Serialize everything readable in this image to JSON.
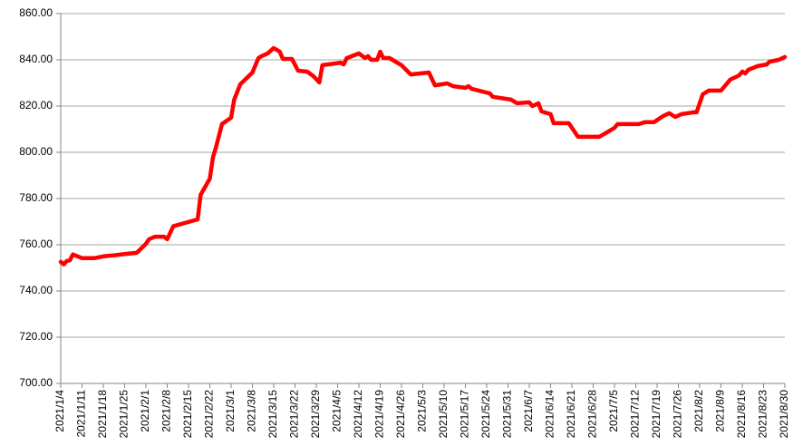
{
  "chart_data": {
    "type": "line",
    "color": "#ff0000",
    "x": [
      "2021/1/4",
      "2021/1/5",
      "2021/1/6",
      "2021/1/7",
      "2021/1/8",
      "2021/1/11",
      "2021/1/15",
      "2021/1/18",
      "2021/1/22",
      "2021/1/25",
      "2021/1/29",
      "2021/2/1",
      "2021/2/2",
      "2021/2/4",
      "2021/2/7",
      "2021/2/8",
      "2021/2/10",
      "2021/2/18",
      "2021/2/19",
      "2021/2/22",
      "2021/2/23",
      "2021/2/24",
      "2021/2/26",
      "2021/3/1",
      "2021/3/2",
      "2021/3/4",
      "2021/3/8",
      "2021/3/10",
      "2021/3/11",
      "2021/3/13",
      "2021/3/15",
      "2021/3/17",
      "2021/3/18",
      "2021/3/21",
      "2021/3/23",
      "2021/3/26",
      "2021/3/28",
      "2021/3/30",
      "2021/3/31",
      "2021/4/4",
      "2021/4/6",
      "2021/4/7",
      "2021/4/8",
      "2021/4/9",
      "2021/4/12",
      "2021/4/14",
      "2021/4/15",
      "2021/4/16",
      "2021/4/18",
      "2021/4/19",
      "2021/4/20",
      "2021/4/22",
      "2021/4/26",
      "2021/4/29",
      "2021/5/5",
      "2021/5/7",
      "2021/5/11",
      "2021/5/13",
      "2021/5/17",
      "2021/5/18",
      "2021/5/19",
      "2021/5/25",
      "2021/5/26",
      "2021/6/1",
      "2021/6/3",
      "2021/6/7",
      "2021/6/8",
      "2021/6/10",
      "2021/6/11",
      "2021/6/14",
      "2021/6/15",
      "2021/6/20",
      "2021/6/23",
      "2021/6/30",
      "2021/7/3",
      "2021/7/5",
      "2021/7/6",
      "2021/7/13",
      "2021/7/15",
      "2021/7/18",
      "2021/7/21",
      "2021/7/23",
      "2021/7/25",
      "2021/7/27",
      "2021/7/31",
      "2021/8/1",
      "2021/8/3",
      "2021/8/5",
      "2021/8/9",
      "2021/8/12",
      "2021/8/15",
      "2021/8/16",
      "2021/8/17",
      "2021/8/18",
      "2021/8/21",
      "2021/8/24",
      "2021/8/25",
      "2021/8/28",
      "2021/8/30"
    ],
    "values": [
      752.6,
      751.5,
      753,
      753.3,
      755.8,
      754.2,
      754.2,
      755,
      755.5,
      756,
      756.5,
      760.4,
      762.4,
      763.5,
      763.5,
      762.4,
      768,
      771,
      781.6,
      788.6,
      797.7,
      802,
      812.2,
      815,
      822.8,
      829.4,
      834.5,
      840.8,
      841.6,
      842.8,
      845.1,
      843.5,
      840.4,
      840.4,
      835.3,
      834.9,
      833,
      830.2,
      837.7,
      838.4,
      838.8,
      838,
      840.8,
      841.2,
      842.8,
      840.8,
      841.6,
      840,
      840,
      843.5,
      840.8,
      840.8,
      837.7,
      833.7,
      834.5,
      829,
      829.8,
      828.6,
      827.9,
      828.6,
      827.5,
      825.5,
      824,
      822.8,
      821.2,
      821.6,
      820,
      821.2,
      817.7,
      816.5,
      812.6,
      812.6,
      806.7,
      806.7,
      809,
      810.6,
      812.2,
      812.2,
      813,
      813,
      815.7,
      816.9,
      815.3,
      816.5,
      817.3,
      817.3,
      825.1,
      826.7,
      826.7,
      831.4,
      833.3,
      834.9,
      834.1,
      835.7,
      837.3,
      838,
      839.2,
      840,
      841.2
    ],
    "xlim": [
      "2021/1/4",
      "2021/8/30"
    ],
    "xticks": [
      "2021/1/4",
      "2021/1/11",
      "2021/1/18",
      "2021/1/25",
      "2021/2/1",
      "2021/2/8",
      "2021/2/15",
      "2021/2/22",
      "2021/3/1",
      "2021/3/8",
      "2021/3/15",
      "2021/3/22",
      "2021/3/29",
      "2021/4/5",
      "2021/4/12",
      "2021/4/19",
      "2021/4/26",
      "2021/5/3",
      "2021/5/10",
      "2021/5/17",
      "2021/5/24",
      "2021/5/31",
      "2021/6/7",
      "2021/6/14",
      "2021/6/21",
      "2021/6/28",
      "2021/7/5",
      "2021/7/12",
      "2021/7/19",
      "2021/7/26",
      "2021/8/2",
      "2021/8/9",
      "2021/8/16",
      "2021/8/23",
      "2021/8/30"
    ],
    "ylim": [
      700,
      860
    ],
    "yticks": [
      {
        "value": 700,
        "label": "700.00"
      },
      {
        "value": 720,
        "label": "720.00"
      },
      {
        "value": 740,
        "label": "740.00"
      },
      {
        "value": 760,
        "label": "760.00"
      },
      {
        "value": 780,
        "label": "780.00"
      },
      {
        "value": 800,
        "label": "800.00"
      },
      {
        "value": 820,
        "label": "820.00"
      },
      {
        "value": 840,
        "label": "840.00"
      },
      {
        "value": 860,
        "label": "860.00"
      }
    ],
    "grid": true
  }
}
